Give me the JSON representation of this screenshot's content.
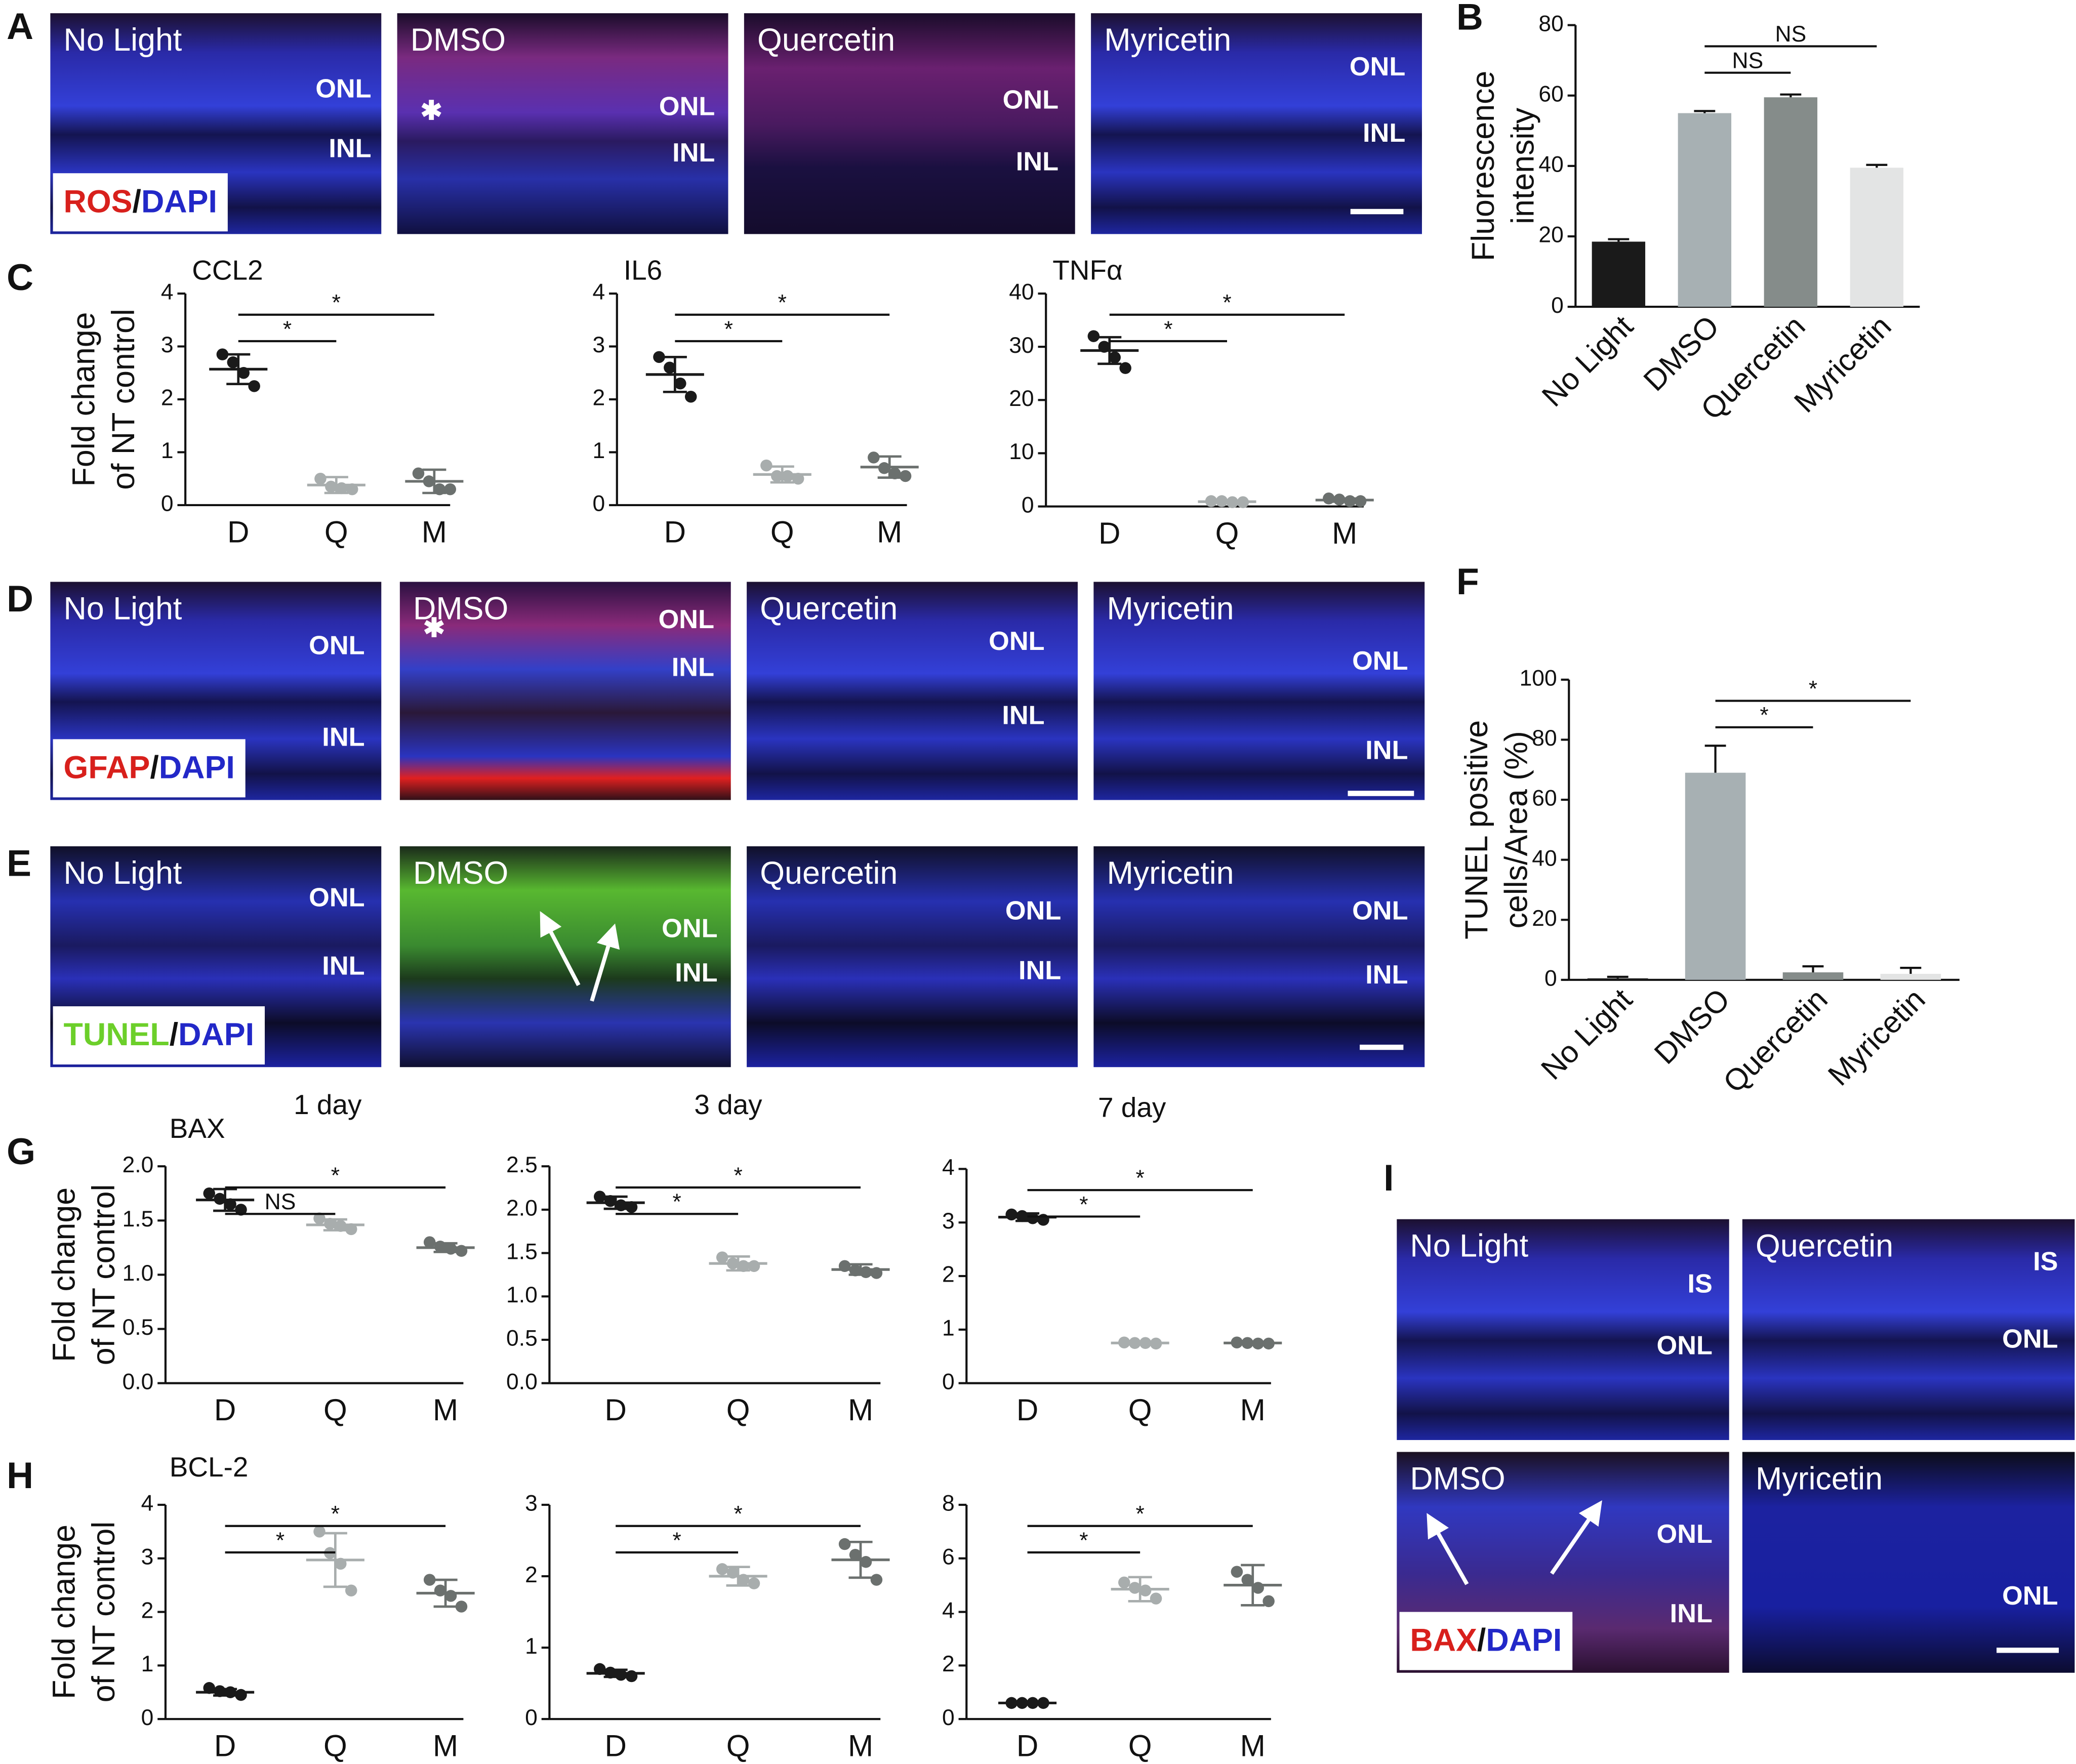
{
  "letters": [
    "A",
    "B",
    "C",
    "D",
    "E",
    "F",
    "G",
    "H",
    "I"
  ],
  "micrographs": [
    {
      "legend": [
        "ROS",
        "/",
        "DAPI"
      ],
      "legend_colors": [
        "#d8201c",
        "#111111",
        "#2228c8"
      ],
      "panels": [
        {
          "title": "No Light",
          "labels": [
            "ONL",
            "INL"
          ]
        },
        {
          "title": "DMSO",
          "labels": [
            "✱",
            "ONL",
            "INL"
          ]
        },
        {
          "title": "Quercetin",
          "labels": [
            "ONL",
            "INL"
          ]
        },
        {
          "title": "Myricetin",
          "labels": [
            "ONL",
            "INL"
          ]
        }
      ]
    },
    {
      "legend": [
        "GFAP",
        "/",
        "DAPI"
      ],
      "legend_colors": [
        "#d8201c",
        "#111111",
        "#2228c8"
      ],
      "panels": [
        {
          "title": "No Light",
          "labels": [
            "ONL",
            "INL"
          ]
        },
        {
          "title": "DMSO",
          "labels": [
            "✱",
            "ONL",
            "INL"
          ]
        },
        {
          "title": "Quercetin",
          "labels": [
            "ONL",
            "INL"
          ]
        },
        {
          "title": "Myricetin",
          "labels": [
            "ONL",
            "INL"
          ]
        }
      ]
    },
    {
      "legend": [
        "TUNEL",
        "/",
        "DAPI"
      ],
      "legend_colors": [
        "#6ccf2a",
        "#111111",
        "#2228c8"
      ],
      "panels": [
        {
          "title": "No Light",
          "labels": [
            "ONL",
            "INL"
          ]
        },
        {
          "title": "DMSO",
          "labels": [
            "ONL",
            "INL"
          ]
        },
        {
          "title": "Quercetin",
          "labels": [
            "ONL",
            "INL"
          ]
        },
        {
          "title": "Myricetin",
          "labels": [
            "ONL",
            "INL"
          ]
        }
      ]
    },
    {
      "legend": [
        "BAX",
        "/",
        "DAPI"
      ],
      "legend_colors": [
        "#d8201c",
        "#111111",
        "#2228c8"
      ],
      "panels": [
        {
          "title": "No Light",
          "labels": [
            "IS",
            "ONL"
          ]
        },
        {
          "title": "Quercetin",
          "labels": [
            "IS",
            "ONL"
          ]
        },
        {
          "title": "DMSO",
          "labels": [
            "ONL",
            "INL"
          ]
        },
        {
          "title": "Myricetin",
          "labels": [
            "ONL"
          ]
        }
      ]
    }
  ],
  "chart_data": [
    {
      "type": "bar",
      "ylabel": [
        "Fluorescence",
        "intensity"
      ],
      "categories": [
        "No Light",
        "DMSO",
        "Quercetin",
        "Myricetin"
      ],
      "values": [
        18.5,
        55,
        59.5,
        39.5
      ],
      "errors": [
        0.7,
        0.6,
        0.8,
        0.8
      ],
      "colors": [
        "#1a1a1a",
        "#a7b0b3",
        "#858c8a",
        "#e3e4e4"
      ],
      "ylim": [
        0,
        80
      ],
      "yticks": [
        0,
        20,
        40,
        60,
        80
      ],
      "brackets": [
        {
          "between": [
            "DMSO",
            "Quercetin"
          ],
          "label": "NS"
        },
        {
          "between": [
            "DMSO",
            "Myricetin"
          ],
          "label": "NS"
        }
      ]
    },
    {
      "type": "dot",
      "title": "CCL2",
      "ylabel": [
        "Fold change",
        "of NT control"
      ],
      "categories": [
        "D",
        "Q",
        "M"
      ],
      "groups": [
        {
          "color": "#1a1a1a",
          "points": [
            2.85,
            2.7,
            2.5,
            2.25
          ],
          "mean": 2.57,
          "sd": 0.28
        },
        {
          "color": "#a8adad",
          "points": [
            0.5,
            0.35,
            0.32,
            0.3
          ],
          "mean": 0.38,
          "sd": 0.15
        },
        {
          "color": "#6b706e",
          "points": [
            0.6,
            0.45,
            0.3,
            0.3
          ],
          "mean": 0.45,
          "sd": 0.22
        }
      ],
      "ylim": [
        0,
        4
      ],
      "yticks": [
        0,
        1,
        2,
        3,
        4
      ],
      "brackets": [
        {
          "between": [
            "D",
            "Q"
          ],
          "label": "*"
        },
        {
          "between": [
            "D",
            "M"
          ],
          "label": "*"
        }
      ]
    },
    {
      "type": "dot",
      "title": "IL6",
      "categories": [
        "D",
        "Q",
        "M"
      ],
      "groups": [
        {
          "color": "#1a1a1a",
          "points": [
            2.8,
            2.6,
            2.3,
            2.05
          ],
          "mean": 2.47,
          "sd": 0.33
        },
        {
          "color": "#a8adad",
          "points": [
            0.75,
            0.55,
            0.55,
            0.5
          ],
          "mean": 0.58,
          "sd": 0.15
        },
        {
          "color": "#6b706e",
          "points": [
            0.9,
            0.7,
            0.6,
            0.55
          ],
          "mean": 0.72,
          "sd": 0.2
        }
      ],
      "ylim": [
        0,
        4
      ],
      "yticks": [
        0,
        1,
        2,
        3,
        4
      ],
      "brackets": [
        {
          "between": [
            "D",
            "Q"
          ],
          "label": "*"
        },
        {
          "between": [
            "D",
            "M"
          ],
          "label": "*"
        }
      ]
    },
    {
      "type": "dot",
      "title": "TNFα",
      "categories": [
        "D",
        "Q",
        "M"
      ],
      "groups": [
        {
          "color": "#1a1a1a",
          "points": [
            32,
            30,
            28,
            26
          ],
          "mean": 29.3,
          "sd": 2.5
        },
        {
          "color": "#a8adad",
          "points": [
            1,
            1,
            0.8,
            0.8
          ],
          "mean": 0.9,
          "sd": 0.1
        },
        {
          "color": "#6b706e",
          "points": [
            1.5,
            1.3,
            1,
            1
          ],
          "mean": 1.2,
          "sd": 0.3
        }
      ],
      "ylim": [
        0,
        40
      ],
      "yticks": [
        0,
        10,
        20,
        30,
        40
      ],
      "brackets": [
        {
          "between": [
            "D",
            "Q"
          ],
          "label": "*"
        },
        {
          "between": [
            "D",
            "M"
          ],
          "label": "*"
        }
      ]
    },
    {
      "type": "bar",
      "ylabel": [
        "TUNEL positive",
        "cells/Area (%)"
      ],
      "categories": [
        "No Light",
        "DMSO",
        "Quercetin",
        "Myricetin"
      ],
      "values": [
        0.5,
        69,
        2.5,
        2
      ],
      "errors": [
        0.5,
        9,
        2,
        2
      ],
      "colors": [
        "#1a1a1a",
        "#a7b0b3",
        "#858c8a",
        "#e3e4e4"
      ],
      "ylim": [
        0,
        100
      ],
      "yticks": [
        0,
        20,
        40,
        60,
        80,
        100
      ],
      "brackets": [
        {
          "between": [
            "DMSO",
            "Quercetin"
          ],
          "label": "*"
        },
        {
          "between": [
            "DMSO",
            "Myricetin"
          ],
          "label": "*"
        }
      ]
    },
    {
      "type": "dot",
      "title": "1 day",
      "label": "BAX",
      "ylabel": [
        "Fold change",
        "of NT control"
      ],
      "categories": [
        "D",
        "Q",
        "M"
      ],
      "groups": [
        {
          "color": "#1a1a1a",
          "points": [
            1.75,
            1.7,
            1.65,
            1.6
          ],
          "mean": 1.69,
          "sd": 0.1
        },
        {
          "color": "#a8adad",
          "points": [
            1.52,
            1.47,
            1.45,
            1.42
          ],
          "mean": 1.46,
          "sd": 0.05
        },
        {
          "color": "#6b706e",
          "points": [
            1.3,
            1.26,
            1.24,
            1.22
          ],
          "mean": 1.25,
          "sd": 0.04
        }
      ],
      "ylim": [
        0,
        2
      ],
      "yticks": [
        {
          "value": 0,
          "label": "0.0"
        },
        {
          "value": 0.5,
          "label": "0.5"
        },
        {
          "value": 1,
          "label": "1.0"
        },
        {
          "value": 1.5,
          "label": "1.5"
        },
        {
          "value": 2,
          "label": "2.0"
        }
      ],
      "brackets": [
        {
          "between": [
            "D",
            "Q"
          ],
          "label": "NS"
        },
        {
          "between": [
            "D",
            "M"
          ],
          "label": "*"
        }
      ]
    },
    {
      "type": "dot",
      "title": "3 day",
      "categories": [
        "D",
        "Q",
        "M"
      ],
      "groups": [
        {
          "color": "#1a1a1a",
          "points": [
            2.15,
            2.1,
            2.05,
            2.03
          ],
          "mean": 2.08,
          "sd": 0.07
        },
        {
          "color": "#a8adad",
          "points": [
            1.45,
            1.38,
            1.35,
            1.35
          ],
          "mean": 1.38,
          "sd": 0.08
        },
        {
          "color": "#6b706e",
          "points": [
            1.35,
            1.3,
            1.28,
            1.27
          ],
          "mean": 1.31,
          "sd": 0.06
        }
      ],
      "ylim": [
        0,
        2.5
      ],
      "yticks": [
        {
          "value": 0,
          "label": "0.0"
        },
        {
          "value": 0.5,
          "label": "0.5"
        },
        {
          "value": 1,
          "label": "1.0"
        },
        {
          "value": 1.5,
          "label": "1.5"
        },
        {
          "value": 2,
          "label": "2.0"
        },
        {
          "value": 2.5,
          "label": "2.5"
        }
      ],
      "brackets": [
        {
          "between": [
            "D",
            "Q"
          ],
          "label": "*"
        },
        {
          "between": [
            "D",
            "M"
          ],
          "label": "*"
        }
      ]
    },
    {
      "type": "dot",
      "title": "7 day",
      "categories": [
        "D",
        "Q",
        "M"
      ],
      "groups": [
        {
          "color": "#1a1a1a",
          "points": [
            3.15,
            3.12,
            3.08,
            3.05
          ],
          "mean": 3.1,
          "sd": 0.07
        },
        {
          "color": "#a8adad",
          "points": [
            0.76,
            0.75,
            0.75,
            0.74
          ],
          "mean": 0.75,
          "sd": 0.02
        },
        {
          "color": "#6b706e",
          "points": [
            0.76,
            0.75,
            0.74,
            0.74
          ],
          "mean": 0.75,
          "sd": 0.02
        }
      ],
      "ylim": [
        0,
        4
      ],
      "yticks": [
        0,
        1,
        2,
        3,
        4
      ],
      "brackets": [
        {
          "between": [
            "D",
            "Q"
          ],
          "label": "*"
        },
        {
          "between": [
            "D",
            "M"
          ],
          "label": "*"
        }
      ]
    },
    {
      "type": "dot",
      "label": "BCL-2",
      "ylabel": [
        "Fold change",
        "of NT control"
      ],
      "categories": [
        "D",
        "Q",
        "M"
      ],
      "groups": [
        {
          "color": "#1a1a1a",
          "points": [
            0.58,
            0.52,
            0.5,
            0.45
          ],
          "mean": 0.5,
          "sd": 0.06
        },
        {
          "color": "#a8adad",
          "points": [
            3.5,
            3.1,
            2.9,
            2.4
          ],
          "mean": 2.97,
          "sd": 0.5
        },
        {
          "color": "#6b706e",
          "points": [
            2.6,
            2.4,
            2.3,
            2.1
          ],
          "mean": 2.35,
          "sd": 0.25
        }
      ],
      "ylim": [
        0,
        4
      ],
      "yticks": [
        0,
        1,
        2,
        3,
        4
      ],
      "brackets": [
        {
          "between": [
            "D",
            "Q"
          ],
          "label": "*"
        },
        {
          "between": [
            "D",
            "M"
          ],
          "label": "*"
        }
      ]
    },
    {
      "type": "dot",
      "categories": [
        "D",
        "Q",
        "M"
      ],
      "groups": [
        {
          "color": "#1a1a1a",
          "points": [
            0.7,
            0.65,
            0.62,
            0.6
          ],
          "mean": 0.64,
          "sd": 0.05
        },
        {
          "color": "#a8adad",
          "points": [
            2.1,
            2.05,
            1.95,
            1.9
          ],
          "mean": 2,
          "sd": 0.13
        },
        {
          "color": "#6b706e",
          "points": [
            2.45,
            2.3,
            2.2,
            1.95
          ],
          "mean": 2.23,
          "sd": 0.25
        }
      ],
      "ylim": [
        0,
        3
      ],
      "yticks": [
        0,
        1,
        2,
        3
      ],
      "brackets": [
        {
          "between": [
            "D",
            "Q"
          ],
          "label": "*"
        },
        {
          "between": [
            "D",
            "M"
          ],
          "label": "*"
        }
      ]
    },
    {
      "type": "dot",
      "categories": [
        "D",
        "Q",
        "M"
      ],
      "groups": [
        {
          "color": "#1a1a1a",
          "points": [
            0.6,
            0.6,
            0.6,
            0.6
          ],
          "mean": 0.6,
          "sd": 0.03
        },
        {
          "color": "#a8adad",
          "points": [
            5.1,
            4.9,
            4.8,
            4.5
          ],
          "mean": 4.85,
          "sd": 0.45
        },
        {
          "color": "#6b706e",
          "points": [
            5.5,
            5.2,
            4.9,
            4.4
          ],
          "mean": 5,
          "sd": 0.75
        }
      ],
      "ylim": [
        0,
        8
      ],
      "yticks": [
        0,
        2,
        4,
        6,
        8
      ],
      "brackets": [
        {
          "between": [
            "D",
            "Q"
          ],
          "label": "*"
        },
        {
          "between": [
            "D",
            "M"
          ],
          "label": "*"
        }
      ]
    }
  ]
}
